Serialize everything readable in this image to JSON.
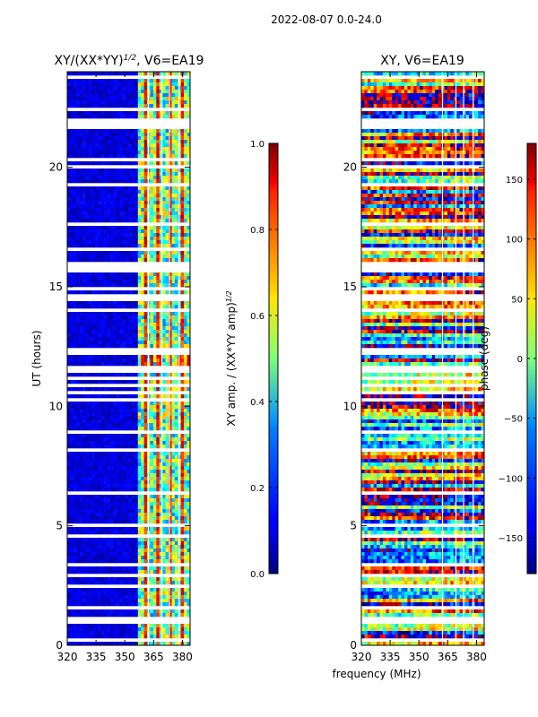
{
  "chart_data": [
    {
      "type": "heatmap",
      "suptitle": "2022-08-07 0.0-24.0",
      "title_prefix": "XY/(XX*YY)",
      "title_exponent": "1/2",
      "title_suffix": ", V6=EA19",
      "ylabel": "UT (hours)",
      "xlim": [
        320,
        384
      ],
      "ylim": [
        0,
        24
      ],
      "xticks": [
        "320",
        "335",
        "350",
        "365",
        "380"
      ],
      "yticks": [
        "0",
        "5",
        "10",
        "15",
        "20"
      ],
      "colorbar": {
        "label_prefix": "XY amp. / (XX*YY amp)",
        "label_exponent": "1/2",
        "range": [
          0.0,
          1.0
        ],
        "ticks": [
          "0.0",
          "0.2",
          "0.4",
          "0.6",
          "0.8",
          "1.0"
        ]
      }
    },
    {
      "type": "heatmap",
      "title": "XY, V6=EA19",
      "xlabel": "frequency (MHz)",
      "xlim": [
        320,
        384
      ],
      "ylim": [
        0,
        24
      ],
      "xticks": [
        "320",
        "335",
        "350",
        "365",
        "380"
      ],
      "yticks": [
        "0",
        "5",
        "10",
        "15",
        "20"
      ],
      "colorbar": {
        "label": "phase (deg)",
        "range": [
          -180,
          180
        ],
        "ticks": [
          "−150",
          "−100",
          "−50",
          "0",
          "50",
          "100",
          "150"
        ]
      }
    }
  ],
  "colors": {
    "jet_low": "#00007f",
    "jet_mid": "#7dff7a",
    "jet_high": "#7f0000"
  }
}
